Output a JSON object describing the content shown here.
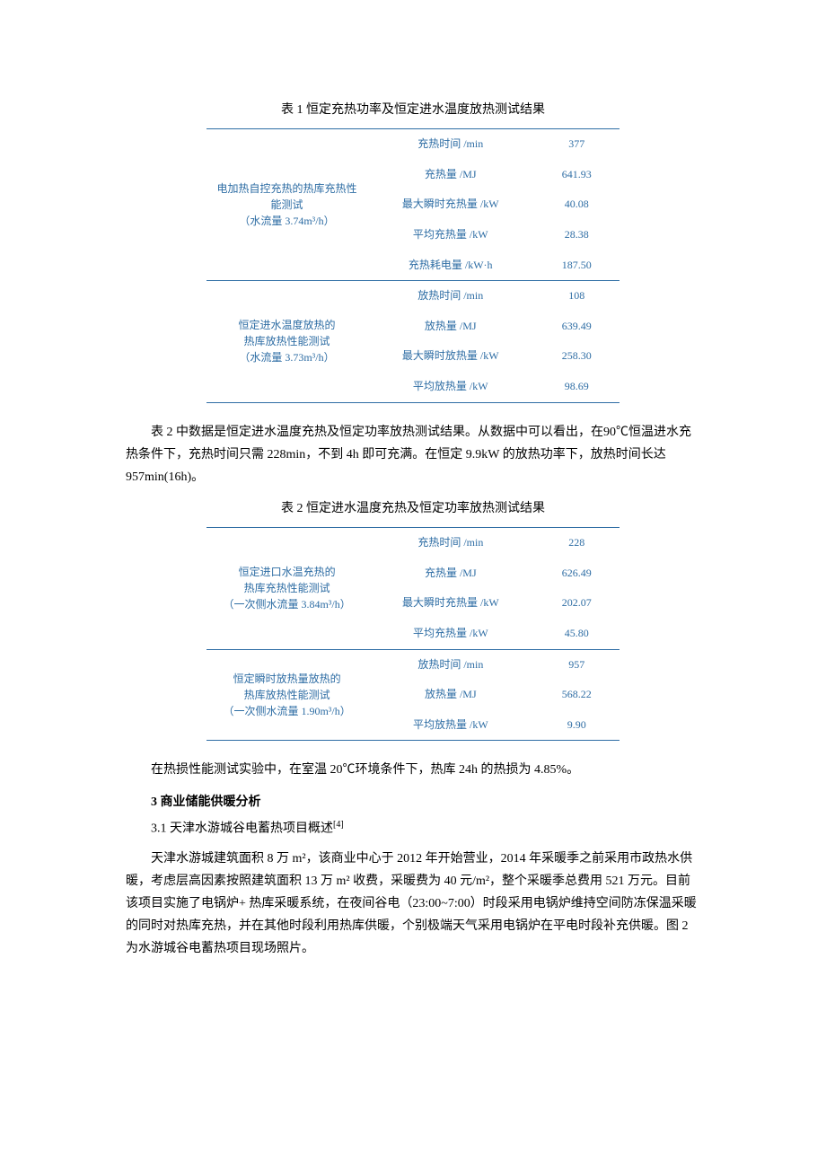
{
  "table1": {
    "caption": "表 1 恒定充热功率及恒定进水温度放热测试结果",
    "section1": {
      "label_line1": "电加热自控充热的热库充热性",
      "label_line2": "能测试",
      "label_line3": "（水流量 3.74m³/h）",
      "rows": [
        {
          "param": "充热时间 /min",
          "val": "377"
        },
        {
          "param": "充热量 /MJ",
          "val": "641.93"
        },
        {
          "param": "最大瞬时充热量 /kW",
          "val": "40.08"
        },
        {
          "param": "平均充热量 /kW",
          "val": "28.38"
        },
        {
          "param": "充热耗电量 /kW·h",
          "val": "187.50"
        }
      ]
    },
    "section2": {
      "label_line1": "恒定进水温度放热的",
      "label_line2": "热库放热性能测试",
      "label_line3": "（水流量 3.73m³/h）",
      "rows": [
        {
          "param": "放热时间 /min",
          "val": "108"
        },
        {
          "param": "放热量 /MJ",
          "val": "639.49"
        },
        {
          "param": "最大瞬时放热量 /kW",
          "val": "258.30"
        },
        {
          "param": "平均放热量 /kW",
          "val": "98.69"
        }
      ]
    }
  },
  "para1": "表 2 中数据是恒定进水温度充热及恒定功率放热测试结果。从数据中可以看出，在90℃恒温进水充热条件下，充热时间只需 228min，不到 4h 即可充满。在恒定 9.9kW 的放热功率下，放热时间长达 957min(16h)。",
  "table2": {
    "caption": "表 2 恒定进水温度充热及恒定功率放热测试结果",
    "section1": {
      "label_line1": "恒定进口水温充热的",
      "label_line2": "热库充热性能测试",
      "label_line3": "（一次侧水流量 3.84m³/h）",
      "rows": [
        {
          "param": "充热时间 /min",
          "val": "228"
        },
        {
          "param": "充热量 /MJ",
          "val": "626.49"
        },
        {
          "param": "最大瞬时充热量 /kW",
          "val": "202.07"
        },
        {
          "param": "平均充热量 /kW",
          "val": "45.80"
        }
      ]
    },
    "section2": {
      "label_line1": "恒定瞬时放热量放热的",
      "label_line2": "热库放热性能测试",
      "label_line3": "（一次侧水流量 1.90m³/h）",
      "rows": [
        {
          "param": "放热时间 /min",
          "val": "957"
        },
        {
          "param": "放热量 /MJ",
          "val": "568.22"
        },
        {
          "param": "平均放热量 /kW",
          "val": "9.90"
        }
      ]
    }
  },
  "para2": "在热损性能测试实验中，在室温 20℃环境条件下，热库 24h 的热损为 4.85%。",
  "section3_title": "3 商业储能供暖分析",
  "section3_1": "3.1 天津水游城谷电蓄热项目概述",
  "ref4": "[4]",
  "para3": "天津水游城建筑面积 8 万 m²，该商业中心于 2012 年开始营业，2014 年采暖季之前采用市政热水供暖，考虑层高因素按照建筑面积 13 万 m² 收费，采暖费为 40 元/m²，整个采暖季总费用 521 万元。目前该项目实施了电锅炉+ 热库采暖系统，在夜间谷电（23:00~7:00）时段采用电锅炉维持空间防冻保温采暖的同时对热库充热，并在其他时段利用热库供暖，个别极端天气采用电锅炉在平电时段补充供暖。图 2 为水游城谷电蓄热项目现场照片。"
}
